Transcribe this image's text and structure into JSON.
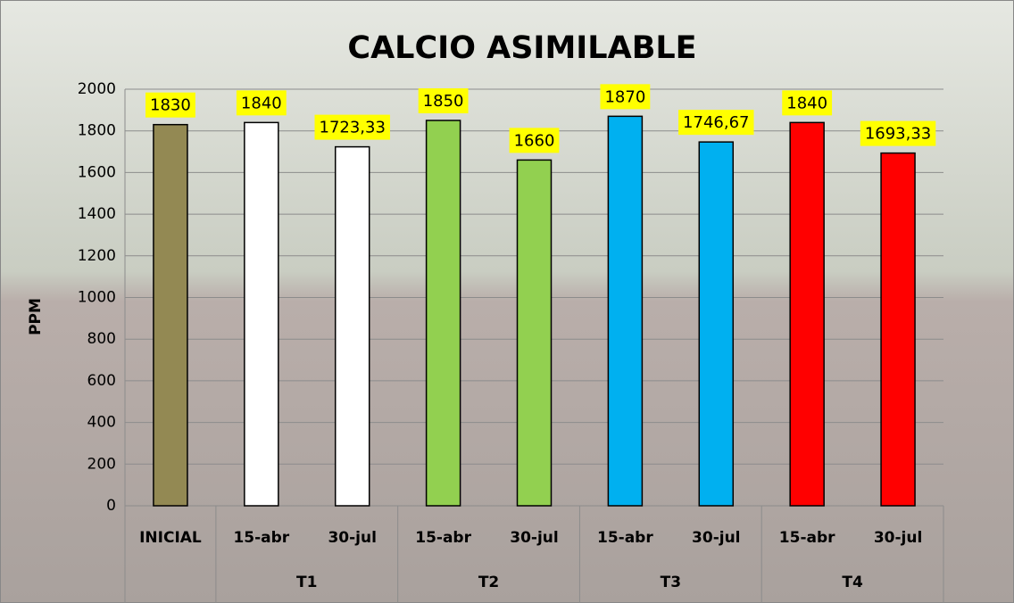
{
  "chart_data": {
    "type": "bar",
    "title": "CALCIO ASIMILABLE",
    "y_label": "PPM",
    "categories": [
      "INICIAL",
      "15-abr",
      "30-jul",
      "15-abr",
      "30-jul",
      "15-abr",
      "30-jul",
      "15-abr",
      "30-jul"
    ],
    "groups": [
      {
        "name": null,
        "size": 1
      },
      {
        "name": "T1",
        "size": 2
      },
      {
        "name": "T2",
        "size": 2
      },
      {
        "name": "T3",
        "size": 2
      },
      {
        "name": "T4",
        "size": 2
      }
    ],
    "values": [
      1830,
      1840,
      1723.33,
      1850,
      1660,
      1870,
      1746.67,
      1840,
      1693.33
    ],
    "value_labels": [
      "1830",
      "1840",
      "1723,33",
      "1850",
      "1660",
      "1870",
      "1746,67",
      "1840",
      "1693,33"
    ],
    "colors": [
      "#938953",
      "#ffffff",
      "#ffffff",
      "#92d050",
      "#92d050",
      "#00b0f0",
      "#00b0f0",
      "#ff0000",
      "#ff0000"
    ],
    "ylim": [
      0,
      2000
    ],
    "yticks": [
      0,
      200,
      400,
      600,
      800,
      1000,
      1200,
      1400,
      1600,
      1800,
      2000
    ],
    "grid": true
  }
}
